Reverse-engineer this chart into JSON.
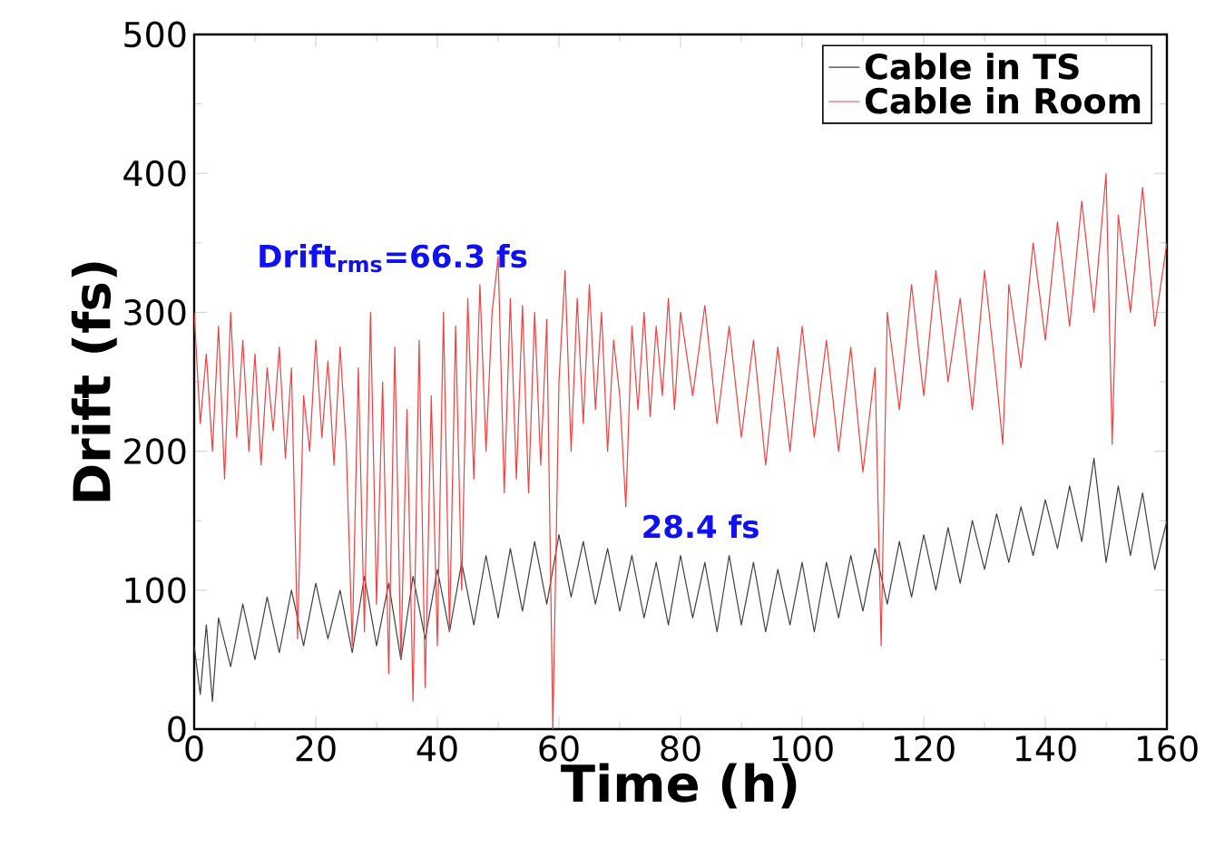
{
  "chart_data": {
    "type": "line",
    "xlabel": "Time (h)",
    "ylabel": "Drift (fs)",
    "xlim": [
      0,
      160
    ],
    "ylim": [
      0,
      500
    ],
    "xticks": [
      0,
      20,
      40,
      60,
      80,
      100,
      120,
      140,
      160
    ],
    "yticks": [
      0,
      100,
      200,
      300,
      400,
      500
    ],
    "legend": "top right",
    "grid": false,
    "annotations": [
      "Drift$_{rms}$=66.3 fs",
      "28.4 fs"
    ],
    "series": [
      {
        "name": "Cable in TS",
        "color": "#404040",
        "x": [
          0,
          1,
          2,
          3,
          4,
          6,
          8,
          10,
          12,
          14,
          16,
          18,
          20,
          22,
          24,
          26,
          28,
          30,
          32,
          34,
          36,
          38,
          40,
          42,
          44,
          46,
          48,
          50,
          52,
          54,
          56,
          58,
          60,
          62,
          64,
          66,
          68,
          70,
          72,
          74,
          76,
          78,
          80,
          82,
          84,
          86,
          88,
          90,
          92,
          94,
          96,
          98,
          100,
          102,
          104,
          106,
          108,
          110,
          112,
          114,
          116,
          118,
          120,
          122,
          124,
          126,
          128,
          130,
          132,
          134,
          136,
          138,
          140,
          142,
          144,
          146,
          148,
          150,
          152,
          154,
          156,
          158,
          160
        ],
        "values": [
          60,
          25,
          75,
          20,
          80,
          45,
          90,
          50,
          95,
          55,
          100,
          60,
          105,
          65,
          100,
          55,
          110,
          60,
          105,
          50,
          110,
          65,
          115,
          70,
          120,
          75,
          125,
          80,
          130,
          85,
          135,
          90,
          140,
          95,
          135,
          90,
          130,
          85,
          125,
          80,
          120,
          75,
          125,
          80,
          120,
          70,
          125,
          75,
          120,
          70,
          115,
          75,
          120,
          70,
          120,
          80,
          125,
          85,
          130,
          90,
          135,
          95,
          140,
          100,
          145,
          105,
          150,
          115,
          155,
          120,
          160,
          125,
          165,
          130,
          175,
          135,
          195,
          120,
          175,
          125,
          170,
          115,
          150
        ]
      },
      {
        "name": "Cable in Room",
        "color": "#f04040",
        "x": [
          0,
          1,
          2,
          3,
          4,
          5,
          6,
          7,
          8,
          9,
          10,
          11,
          12,
          13,
          14,
          15,
          16,
          17,
          18,
          19,
          20,
          21,
          22,
          23,
          24,
          25,
          26,
          27,
          28,
          29,
          30,
          31,
          32,
          33,
          34,
          35,
          36,
          37,
          38,
          39,
          40,
          41,
          42,
          43,
          44,
          45,
          46,
          47,
          48,
          49,
          50,
          51,
          52,
          53,
          54,
          55,
          56,
          57,
          58,
          59,
          60,
          61,
          62,
          63,
          64,
          65,
          66,
          67,
          68,
          69,
          70,
          71,
          72,
          73,
          74,
          75,
          76,
          77,
          78,
          79,
          80,
          82,
          84,
          86,
          88,
          90,
          92,
          94,
          96,
          98,
          100,
          102,
          104,
          106,
          108,
          110,
          112,
          113,
          114,
          116,
          118,
          120,
          122,
          124,
          126,
          128,
          130,
          132,
          133,
          134,
          136,
          138,
          140,
          142,
          144,
          146,
          148,
          150,
          151,
          152,
          154,
          156,
          158,
          160
        ],
        "values": [
          300,
          220,
          270,
          200,
          290,
          180,
          300,
          210,
          280,
          200,
          270,
          190,
          260,
          215,
          275,
          195,
          260,
          65,
          240,
          200,
          280,
          210,
          265,
          190,
          275,
          205,
          60,
          260,
          70,
          300,
          90,
          250,
          40,
          275,
          50,
          230,
          20,
          280,
          30,
          240,
          60,
          300,
          70,
          290,
          100,
          310,
          180,
          320,
          200,
          300,
          340,
          170,
          310,
          180,
          305,
          170,
          300,
          190,
          295,
          0,
          250,
          330,
          200,
          310,
          220,
          320,
          230,
          300,
          200,
          280,
          240,
          160,
          290,
          230,
          300,
          225,
          290,
          240,
          310,
          230,
          300,
          240,
          305,
          220,
          290,
          210,
          280,
          190,
          275,
          200,
          290,
          210,
          280,
          200,
          275,
          185,
          260,
          60,
          300,
          230,
          320,
          240,
          330,
          250,
          310,
          230,
          330,
          250,
          205,
          320,
          260,
          350,
          280,
          365,
          290,
          380,
          300,
          400,
          205,
          370,
          300,
          390,
          290,
          350
        ]
      }
    ]
  }
}
